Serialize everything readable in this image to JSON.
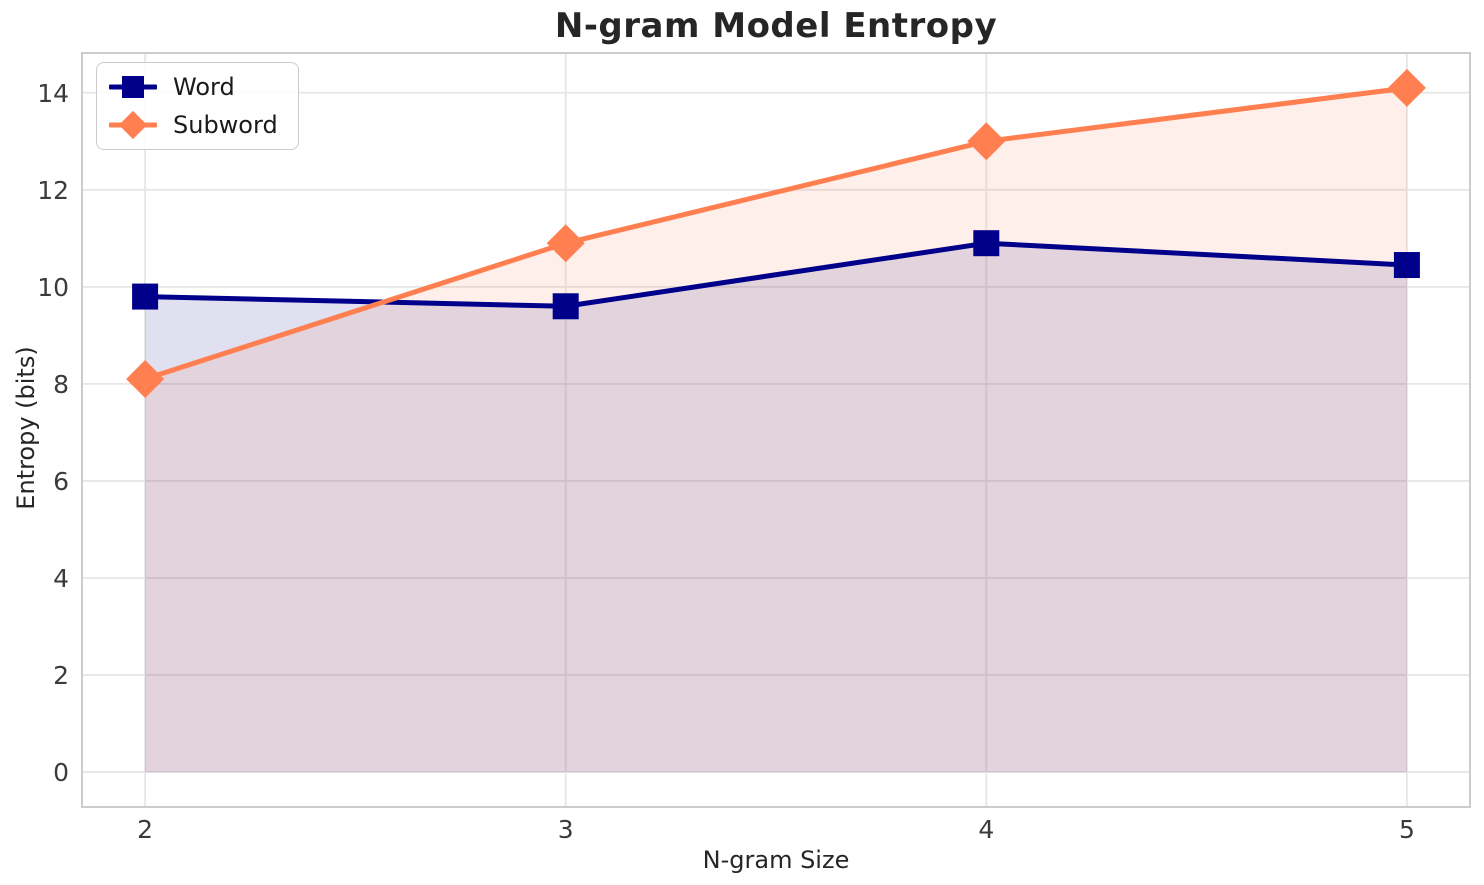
{
  "chart_data": {
    "type": "line",
    "title": "N-gram Model Entropy",
    "xlabel": "N-gram Size",
    "ylabel": "Entropy (bits)",
    "x": [
      2,
      3,
      4,
      5
    ],
    "series": [
      {
        "name": "Word",
        "marker": "square",
        "color": "#00008B",
        "values": [
          9.8,
          9.6,
          10.9,
          10.45
        ],
        "fill_to_zero": true,
        "fill_opacity": 0.12
      },
      {
        "name": "Subword",
        "marker": "diamond",
        "color": "#FF7F50",
        "values": [
          8.1,
          10.9,
          13.0,
          14.1
        ],
        "fill_to_zero": true,
        "fill_opacity": 0.12
      }
    ],
    "xticks": [
      2,
      3,
      4,
      5
    ],
    "yticks": [
      0,
      2,
      4,
      6,
      8,
      10,
      12,
      14
    ],
    "xlim": [
      1.85,
      5.15
    ],
    "ylim": [
      -0.72,
      14.82
    ],
    "grid": true,
    "grid_color": "#e6e6e6",
    "spine_color": "#cccccc",
    "tick_label_color": "#3b3b3b",
    "line_width": 5,
    "legend_position": "upper left"
  }
}
